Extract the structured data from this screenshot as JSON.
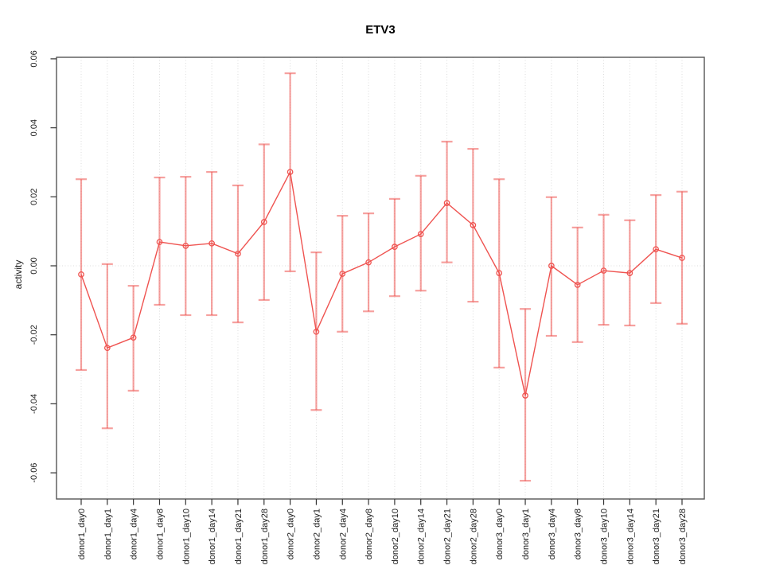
{
  "chart_data": {
    "type": "line",
    "title": "ETV3",
    "xlabel": "",
    "ylabel": "activity",
    "ylim": [
      -0.068,
      0.06
    ],
    "yticks": [
      -0.06,
      -0.04,
      -0.02,
      0.0,
      0.02,
      0.04,
      0.06
    ],
    "grid": {
      "vertical_dotted_per_category": true,
      "horizontal_zero_line_dotted": true
    },
    "legend": null,
    "marker": "open-circle",
    "categories": [
      "donor1_day0",
      "donor1_day1",
      "donor1_day4",
      "donor1_day8",
      "donor1_day10",
      "donor1_day14",
      "donor1_day21",
      "donor1_day28",
      "donor2_day0",
      "donor2_day1",
      "donor2_day4",
      "donor2_day8",
      "donor2_day10",
      "donor2_day14",
      "donor2_day21",
      "donor2_day28",
      "donor3_day0",
      "donor3_day1",
      "donor3_day4",
      "donor3_day8",
      "donor3_day10",
      "donor3_day14",
      "donor3_day21",
      "donor3_day28"
    ],
    "series": [
      {
        "name": "ETV3 activity",
        "values": [
          -0.0025,
          -0.0238,
          -0.0208,
          0.0069,
          0.0058,
          0.0065,
          0.0035,
          0.0127,
          0.0272,
          -0.0191,
          -0.0023,
          0.001,
          0.0055,
          0.0092,
          0.0182,
          0.0118,
          -0.0021,
          -0.0376,
          0.0,
          -0.0055,
          -0.0014,
          -0.0021,
          0.0048,
          0.0023
        ],
        "error_high": [
          0.0251,
          0.0005,
          -0.0058,
          0.0256,
          0.0258,
          0.0272,
          0.0233,
          0.0352,
          0.0558,
          0.0039,
          0.0145,
          0.0152,
          0.0194,
          0.0261,
          0.036,
          0.0339,
          0.0251,
          -0.0125,
          0.0199,
          0.0111,
          0.0148,
          0.0132,
          0.0205,
          0.0215
        ],
        "error_low": [
          -0.0302,
          -0.0471,
          -0.0362,
          -0.0113,
          -0.0143,
          -0.0143,
          -0.0164,
          -0.0099,
          -0.0016,
          -0.0418,
          -0.0191,
          -0.0132,
          -0.0088,
          -0.0072,
          0.001,
          -0.0104,
          -0.0295,
          -0.0623,
          -0.0203,
          -0.0221,
          -0.0171,
          -0.0173,
          -0.0108,
          -0.0168
        ]
      }
    ],
    "colors": {
      "line": "#ef5350",
      "error_bar": "rgba(239,83,80,0.55)",
      "grid": "#dcdcdc",
      "frame": "#555555",
      "tick_text": "#1a1a1a"
    }
  }
}
